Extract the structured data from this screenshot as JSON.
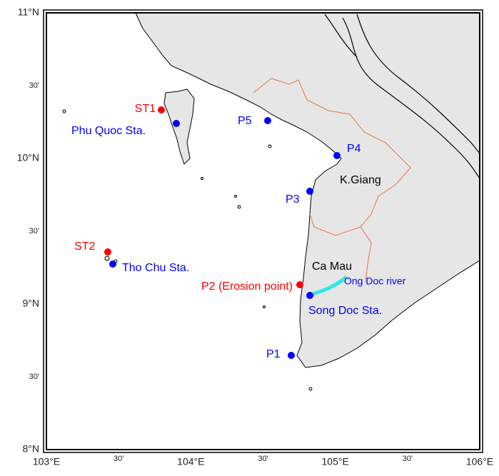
{
  "axes": {
    "lat_labels": [
      "11°N",
      "30'",
      "10°N",
      "30'",
      "9°N",
      "30'",
      "8°N"
    ],
    "lon_labels": [
      "103°E",
      "30'",
      "104°E",
      "30'",
      "105°E",
      "30'",
      "106°E"
    ]
  },
  "stations": [
    {
      "label": "ST1"
    },
    {
      "label": "Phu Quoc Sta."
    },
    {
      "label": "P5"
    },
    {
      "label": "P4"
    },
    {
      "label": "P3"
    },
    {
      "label": "ST2"
    },
    {
      "label": "Tho Chu Sta."
    },
    {
      "label": "P2 (Erosion point)"
    },
    {
      "label": "Song Doc Sta."
    },
    {
      "label": "P1"
    }
  ],
  "places": [
    {
      "label": "K.Giang"
    },
    {
      "label": "Ca Mau"
    },
    {
      "label": "Ong Doc river"
    }
  ]
}
